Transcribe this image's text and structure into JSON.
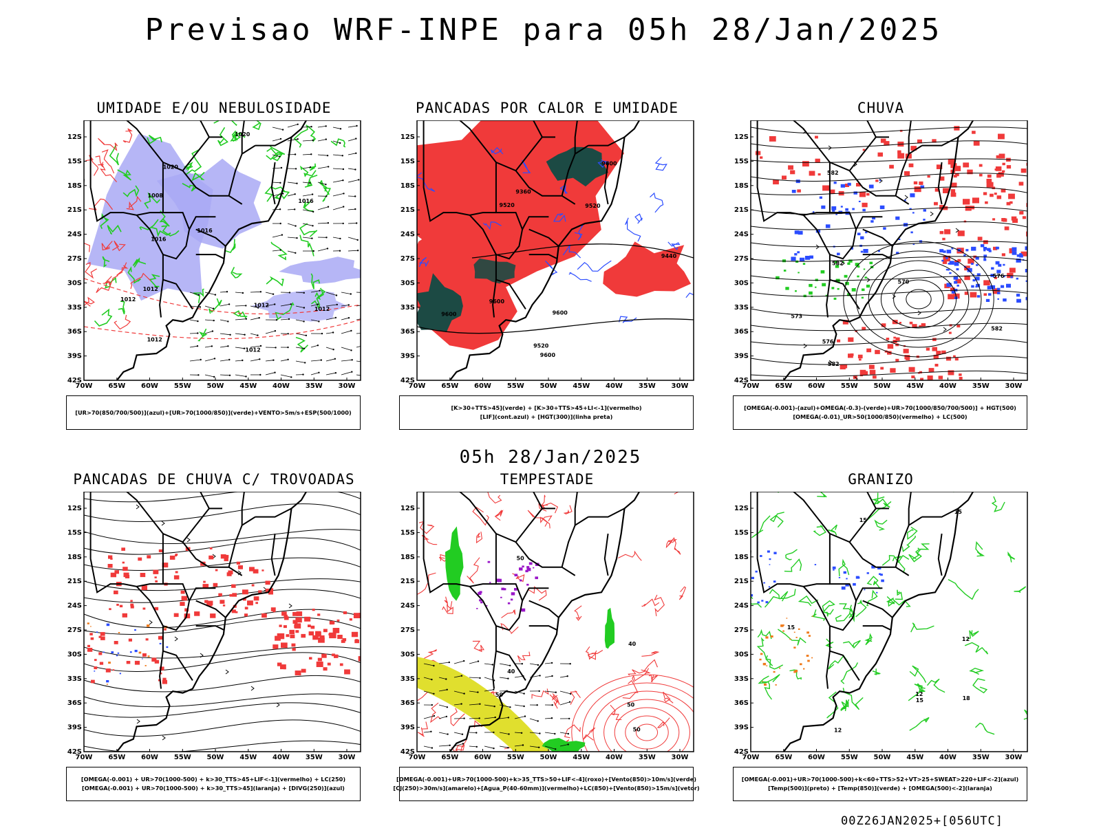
{
  "header": {
    "title": "Previsao WRF-INPE  para 05h 28/Jan/2025"
  },
  "subtitle": "05h 28/Jan/2025",
  "footer": "00Z26JAN2025+[056UTC]",
  "axes": {
    "lat_labels": [
      "12S",
      "15S",
      "18S",
      "21S",
      "24S",
      "27S",
      "30S",
      "33S",
      "36S",
      "39S",
      "42S"
    ],
    "lon_labels": [
      "70W",
      "65W",
      "60W",
      "55W",
      "50W",
      "45W",
      "40W",
      "35W",
      "30W"
    ]
  },
  "colors": {
    "green": "#22cc22",
    "red": "#f03a3a",
    "blue": "#2b4cff",
    "lavender": "#a9a9f5",
    "darkgreen": "#1c4a44",
    "yellow": "#e0df2e",
    "purple": "#9a17c8",
    "orange": "#f07a1a"
  },
  "panels": [
    {
      "title": "UMIDADE E/OU NEBULOSIDADE",
      "legend": [
        "[UR>70(850/700/500)](azul)+[UR>70(1000/850)](verde)+VENTO>5m/s+ESP(500/1000)"
      ],
      "contour_labels": [
        "1012",
        "1012",
        "1012",
        "1008",
        "1012",
        "1012",
        "1016",
        "1020",
        "1016",
        "1012",
        "1016",
        "1020"
      ]
    },
    {
      "title": "PANCADAS POR CALOR E UMIDADE",
      "legend": [
        "[K>30+TTS>45](verde) + [K>30+TTS>45+LI<-1](vermelho)",
        "[LIF](cont.azul) + [HGT(300)](linha preta)"
      ],
      "contour_labels": [
        "9600",
        "9600",
        "9600",
        "9600",
        "9520",
        "9600",
        "9440",
        "9520",
        "9520",
        "9360"
      ]
    },
    {
      "title": "CHUVA",
      "legend": [
        "[OMEGA(-0.001)-(azul)+OMEGA(-0.3)-(verde)+UR>70(1000/850/700/500)] + HGT(500)",
        "[OMEGA(-0.01)_UR>50(1000/850)(vermelho) + LC(500)"
      ],
      "contour_labels": [
        "582",
        "582",
        "582",
        "582",
        "576",
        "573",
        "570",
        "576"
      ]
    },
    {
      "title": "PANCADAS DE CHUVA C/ TROVOADAS",
      "legend": [
        "[OMEGA(-0.001) + UR>70(1000-500) + k>30_TTS>45+LIF<-1](vermelho) + LC(250)",
        "[OMEGA(-0.001) + UR>70(1000-500) + k>30_TTS>45](laranja) + [DIVG(250)](azul)"
      ],
      "contour_labels": []
    },
    {
      "title": "TEMPESTADE",
      "legend": [
        "[OMEGA(-0.001)+UR>70(1000-500)+k>35_TTS>50+LIF<-4](roxo)+[Vento(850)>10m/s](verde)",
        "[CJ(250)>30m/s](amarelo)+[Agua_P(40-60mm)](vermelho)+LC(850)+[Vento(850)>15m/s](vetor)"
      ],
      "contour_labels": [
        "50",
        "40",
        "50",
        "40",
        "50",
        "50"
      ]
    },
    {
      "title": "GRANIZO",
      "legend": [
        "[OMEGA(-0.001)+UR>70(1000-500)+k<60+TTS>52+VT>25+SWEAT>220+LIF<-2](azul)",
        "[Temp(500)](preto) + [Temp(850)](verde) + [OMEGA(500)<-2](laranja)"
      ],
      "contour_labels": [
        "15",
        "12",
        "15",
        "12",
        "15",
        "18",
        "12",
        "15"
      ]
    }
  ]
}
